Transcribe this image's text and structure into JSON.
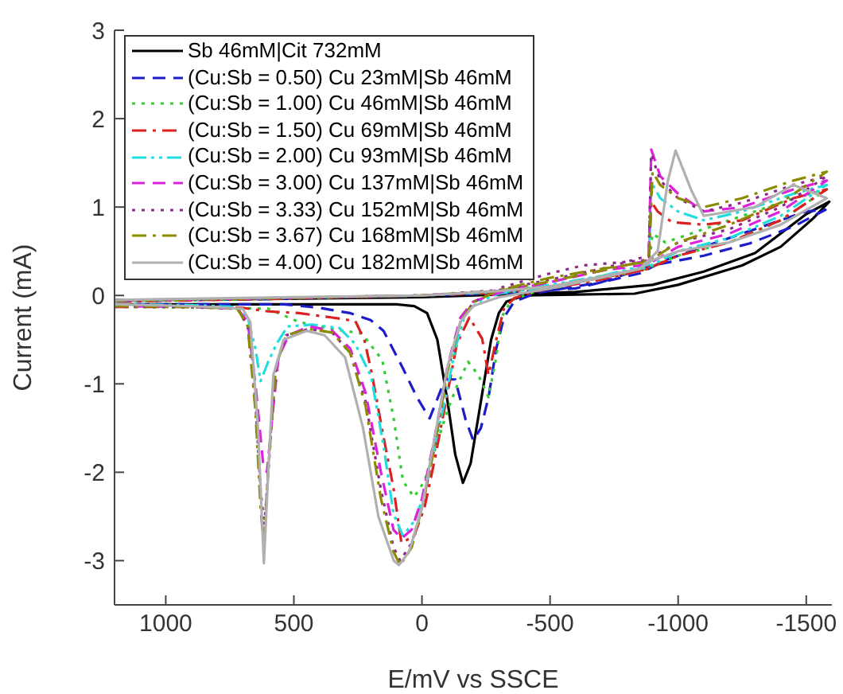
{
  "chart_data": {
    "type": "line",
    "xlabel": "E/mV vs SSCE",
    "ylabel": "Current (mA)",
    "xlim": [
      1200,
      -1600
    ],
    "ylim": [
      -3.5,
      3
    ],
    "xticks": [
      1000,
      500,
      0,
      -500,
      -1000,
      -1500
    ],
    "yticks": [
      -3,
      -2,
      -1,
      0,
      1,
      2,
      3
    ],
    "legend": "top left",
    "series": [
      {
        "name": "Sb 46mM|Cit 732mM",
        "color": "#000000",
        "line_style": "solid",
        "x": [
          1200,
          800,
          400,
          100,
          30,
          -20,
          -60,
          -100,
          -130,
          -160,
          -190,
          -230,
          -270,
          -300,
          -330,
          -400,
          -600,
          -830,
          -1000,
          -1250,
          -1400,
          -1530,
          -1590,
          -1500,
          -1300,
          -1100,
          -900,
          -600,
          -300,
          0,
          600,
          1200
        ],
        "values": [
          -0.1,
          -0.1,
          -0.1,
          -0.1,
          -0.12,
          -0.2,
          -0.5,
          -1.2,
          -1.8,
          -2.12,
          -1.9,
          -1.2,
          -0.5,
          -0.2,
          -0.07,
          0,
          0.01,
          0.02,
          0.12,
          0.34,
          0.55,
          0.88,
          1.06,
          0.92,
          0.48,
          0.27,
          0.12,
          0.04,
          0.01,
          -0.02,
          -0.04,
          -0.05
        ]
      },
      {
        "name": "(Cu:Sb = 0.50) Cu 23mM|Sb 46mM",
        "color": "#1c1cc8",
        "line_style": "dashed",
        "x": [
          1200,
          800,
          540,
          400,
          280,
          200,
          150,
          75,
          20,
          -30,
          -90,
          -130,
          -170,
          -200,
          -230,
          -260,
          -290,
          -320,
          -360,
          -450,
          -700,
          -900,
          -1100,
          -1280,
          -1450,
          -1575,
          -1500,
          -1300,
          -1100,
          -950,
          -850,
          -600,
          -300,
          0,
          600,
          1200
        ],
        "values": [
          -0.1,
          -0.1,
          -0.1,
          -0.14,
          -0.2,
          -0.28,
          -0.4,
          -0.82,
          -1.15,
          -1.39,
          -0.95,
          -0.95,
          -1.4,
          -1.64,
          -1.5,
          -1.15,
          -0.6,
          -0.25,
          -0.07,
          0.03,
          0.15,
          0.34,
          0.45,
          0.59,
          0.78,
          0.97,
          0.95,
          0.75,
          0.55,
          0.4,
          0.25,
          0.08,
          0.02,
          0,
          -0.04,
          -0.06
        ]
      },
      {
        "name": "(Cu:Sb = 1.00) Cu 46mM|Sb 46mM",
        "color": "#33cc33",
        "line_style": "dotted",
        "x": [
          1200,
          800,
          600,
          480,
          350,
          235,
          155,
          110,
          74,
          31,
          -10,
          -50,
          -100,
          -136,
          -180,
          -220,
          -260,
          -290,
          -310,
          -350,
          -450,
          -700,
          -870,
          -1000,
          -1200,
          -1400,
          -1580,
          -1450,
          -1250,
          -1100,
          -950,
          -900,
          -885,
          -700,
          -500,
          -300,
          0,
          600,
          1200
        ],
        "values": [
          -0.13,
          -0.14,
          -0.15,
          -0.3,
          -0.38,
          -0.43,
          -0.73,
          -1.4,
          -2.1,
          -2.28,
          -2.1,
          -1.75,
          -1.3,
          -1.03,
          -0.75,
          -0.9,
          -1.15,
          -0.7,
          -0.25,
          -0.05,
          0.05,
          0.18,
          0.3,
          0.45,
          0.6,
          0.85,
          1.2,
          1.1,
          0.9,
          0.75,
          0.6,
          0.7,
          0.3,
          0.2,
          0.1,
          0.03,
          0,
          -0.04,
          -0.07
        ]
      },
      {
        "name": "(Cu:Sb = 1.50) Cu 69mM|Sb 46mM",
        "color": "#dd2020",
        "line_style": "dashdot",
        "x": [
          1200,
          900,
          700,
          600,
          480,
          350,
          260,
          225,
          198,
          150,
          111,
          80,
          31,
          -10,
          -49,
          -100,
          -136,
          -185,
          -235,
          -260,
          -290,
          -320,
          -360,
          -450,
          -700,
          -880,
          -1000,
          -1200,
          -1400,
          -1580,
          -1450,
          -1250,
          -1100,
          -975,
          -920,
          -895,
          -885,
          -700,
          -500,
          -300,
          0,
          600,
          1200
        ],
        "values": [
          -0.13,
          -0.13,
          -0.14,
          -0.18,
          -0.2,
          -0.25,
          -0.29,
          -0.5,
          -0.85,
          -1.6,
          -2.18,
          -2.8,
          -2.72,
          -2.4,
          -1.87,
          -1.1,
          -0.55,
          -0.25,
          -0.49,
          -0.9,
          -0.5,
          -0.15,
          -0.03,
          0.05,
          0.18,
          0.3,
          0.45,
          0.6,
          0.85,
          1.2,
          1.1,
          0.85,
          0.8,
          0.83,
          0.95,
          1.06,
          0.3,
          0.2,
          0.1,
          0.03,
          0,
          -0.04,
          -0.07
        ]
      },
      {
        "name": "(Cu:Sb = 2.00) Cu 93mM|Sb 46mM",
        "color": "#22dddd",
        "line_style": "dashdotdot",
        "x": [
          1200,
          900,
          720,
          680,
          650,
          630,
          600,
          568,
          525,
          430,
          321,
          260,
          198,
          150,
          111,
          74,
          30,
          -12,
          -50,
          -93,
          -130,
          -170,
          -220,
          -300,
          -500,
          -700,
          -880,
          -1000,
          -1200,
          -1400,
          -1580,
          -1450,
          -1250,
          -1100,
          -1000,
          -930,
          -895,
          -885,
          -700,
          -500,
          -300,
          0,
          600,
          1200
        ],
        "values": [
          -0.1,
          -0.11,
          -0.13,
          -0.25,
          -0.6,
          -0.97,
          -0.75,
          -0.55,
          -0.35,
          -0.33,
          -0.37,
          -0.55,
          -0.92,
          -1.7,
          -2.47,
          -2.72,
          -2.55,
          -2.23,
          -1.7,
          -1.15,
          -0.6,
          -0.2,
          -0.07,
          0.02,
          0.1,
          0.22,
          0.32,
          0.5,
          0.65,
          0.9,
          1.25,
          1.15,
          0.95,
          0.85,
          0.95,
          1.1,
          1.28,
          0.35,
          0.22,
          0.12,
          0.04,
          0,
          -0.03,
          -0.06
        ]
      },
      {
        "name": "(Cu:Sb = 3.00) Cu 137mM|Sb 46mM",
        "color": "#dd22dd",
        "line_style": "dashed",
        "x": [
          1200,
          900,
          720,
          680,
          650,
          620,
          605,
          585,
          560,
          520,
          440,
          350,
          280,
          220,
          160,
          111,
          80,
          40,
          0,
          -50,
          -100,
          -150,
          -200,
          -300,
          -500,
          -700,
          -880,
          -1000,
          -1200,
          -1400,
          -1580,
          -1450,
          -1250,
          -1100,
          -1000,
          -930,
          -895,
          -885,
          -700,
          -500,
          -300,
          0,
          600,
          1200
        ],
        "values": [
          -0.12,
          -0.13,
          -0.15,
          -0.3,
          -1.0,
          -1.9,
          -2.0,
          -1.4,
          -0.7,
          -0.45,
          -0.35,
          -0.4,
          -0.6,
          -1.1,
          -2.0,
          -2.65,
          -2.75,
          -2.65,
          -2.3,
          -1.6,
          -0.8,
          -0.25,
          -0.07,
          0.03,
          0.15,
          0.28,
          0.35,
          0.55,
          0.7,
          0.95,
          1.3,
          1.2,
          1.0,
          0.95,
          1.15,
          1.35,
          1.65,
          0.4,
          0.28,
          0.15,
          0.05,
          0,
          -0.03,
          -0.06
        ]
      },
      {
        "name": "(Cu:Sb = 3.33) Cu 152mM|Sb 46mM",
        "color": "#8b2a8b",
        "line_style": "dotted",
        "x": [
          1200,
          900,
          720,
          680,
          650,
          630,
          615,
          595,
          570,
          530,
          440,
          350,
          280,
          220,
          160,
          111,
          85,
          40,
          0,
          -50,
          -100,
          -150,
          -200,
          -300,
          -500,
          -630,
          -880,
          -1000,
          -1200,
          -1400,
          -1580,
          -1450,
          -1250,
          -1100,
          -1000,
          -930,
          -895,
          -885,
          -700,
          -500,
          -300,
          0,
          600,
          1200
        ],
        "values": [
          -0.12,
          -0.13,
          -0.15,
          -0.35,
          -1.2,
          -2.2,
          -2.6,
          -1.8,
          -0.8,
          -0.45,
          -0.38,
          -0.42,
          -0.65,
          -1.2,
          -2.2,
          -2.85,
          -3.0,
          -2.8,
          -2.4,
          -1.7,
          -0.85,
          -0.3,
          -0.08,
          0.08,
          0.25,
          0.34,
          0.4,
          0.6,
          0.75,
          1.0,
          1.35,
          1.25,
          1.05,
          0.95,
          1.1,
          1.3,
          1.6,
          0.45,
          0.3,
          0.18,
          0.06,
          0,
          -0.03,
          -0.06
        ]
      },
      {
        "name": "(Cu:Sb = 3.67) Cu 168mM|Sb 46mM",
        "color": "#8b8b00",
        "line_style": "dashdot",
        "x": [
          1200,
          900,
          720,
          680,
          650,
          630,
          618,
          598,
          570,
          530,
          440,
          350,
          280,
          220,
          160,
          111,
          85,
          40,
          0,
          -50,
          -100,
          -150,
          -200,
          -300,
          -500,
          -700,
          -880,
          -1000,
          -1200,
          -1400,
          -1580,
          -1450,
          -1250,
          -1100,
          -1000,
          -930,
          -900,
          -885,
          -700,
          -500,
          -300,
          0,
          600,
          1200
        ],
        "values": [
          -0.12,
          -0.13,
          -0.15,
          -0.35,
          -1.3,
          -2.4,
          -2.8,
          -1.9,
          -0.8,
          -0.45,
          -0.38,
          -0.42,
          -0.65,
          -1.25,
          -2.3,
          -2.9,
          -3.05,
          -2.85,
          -2.4,
          -1.7,
          -0.85,
          -0.3,
          -0.08,
          0.06,
          0.2,
          0.3,
          0.38,
          0.6,
          0.8,
          1.05,
          1.4,
          1.3,
          1.1,
          1.0,
          1.1,
          1.25,
          1.4,
          0.4,
          0.28,
          0.16,
          0.05,
          0,
          -0.03,
          -0.06
        ]
      },
      {
        "name": "(Cu:Sb = 4.00) Cu 182mM|Sb 46mM",
        "color": "#b0b0b0",
        "line_style": "solid",
        "x": [
          1200,
          900,
          700,
          670,
          640,
          617,
          600,
          580,
          540,
          450,
          380,
          300,
          230,
          170,
          110,
          90,
          50,
          0,
          -50,
          -100,
          -150,
          -200,
          -300,
          -500,
          -700,
          -850,
          -900,
          -1000,
          -1200,
          -1400,
          -1580,
          -1450,
          -1300,
          -1200,
          -1100,
          -1050,
          -990,
          -960,
          -920,
          -850,
          -500,
          -300,
          0,
          500,
          1200
        ],
        "values": [
          -0.1,
          -0.12,
          -0.15,
          -0.3,
          -1.5,
          -3.03,
          -2.0,
          -0.9,
          -0.5,
          -0.4,
          -0.45,
          -0.7,
          -1.5,
          -2.5,
          -3.0,
          -3.05,
          -2.9,
          -2.4,
          -1.6,
          -0.8,
          -0.3,
          -0.12,
          -0.02,
          0.08,
          0.2,
          0.3,
          0.4,
          0.5,
          0.6,
          0.8,
          1.1,
          1.25,
          1.0,
          0.95,
          0.9,
          1.2,
          1.64,
          1.3,
          0.5,
          0.3,
          0.1,
          0.05,
          0,
          -0.02,
          -0.05
        ]
      }
    ]
  }
}
